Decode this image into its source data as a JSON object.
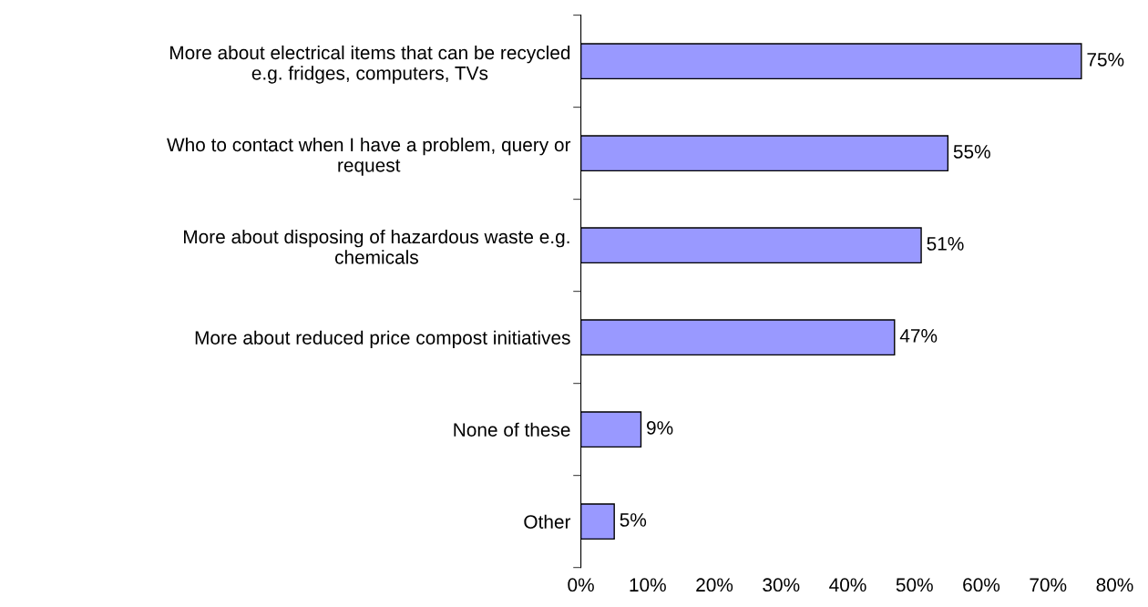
{
  "chart_data": {
    "type": "bar",
    "orientation": "horizontal",
    "categories": [
      "More about electrical items that can be recycled\ne.g. fridges, computers, TVs",
      "Who to contact when I have a problem, query or\nrequest",
      "More about disposing of hazardous waste e.g.\nchemicals",
      "More about reduced price compost initiatives",
      "None of these",
      "Other"
    ],
    "values": [
      75,
      55,
      51,
      47,
      9,
      5
    ],
    "color": "#9999ff",
    "value_labels": [
      "75%",
      "55%",
      "51%",
      "47%",
      "9%",
      "5%"
    ],
    "xlim": [
      0,
      80
    ],
    "xticks": [
      {
        "value": 0,
        "label": "0%"
      },
      {
        "value": 10,
        "label": "10%"
      },
      {
        "value": 20,
        "label": "20%"
      },
      {
        "value": 30,
        "label": "30%"
      },
      {
        "value": 40,
        "label": "40%"
      },
      {
        "value": 50,
        "label": "50%"
      },
      {
        "value": 60,
        "label": "60%"
      },
      {
        "value": 70,
        "label": "70%"
      },
      {
        "value": 80,
        "label": "80%"
      }
    ],
    "grid": false,
    "legend": false
  }
}
